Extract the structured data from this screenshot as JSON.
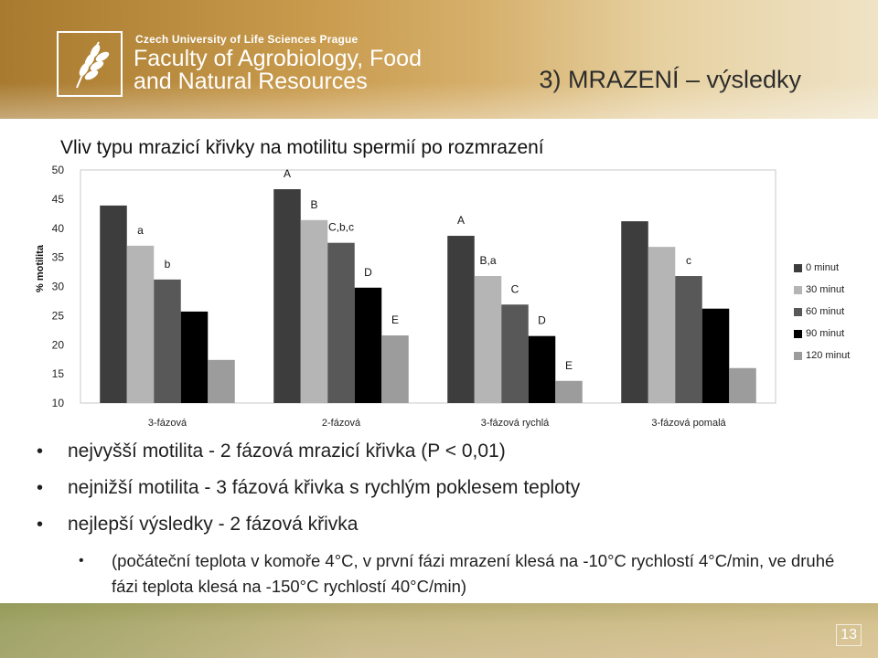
{
  "header": {
    "university": "Czech University of Life Sciences Prague",
    "faculty_line1": "Faculty of Agrobiology, Food",
    "faculty_line2": "and Natural Resources",
    "slide_title": "3) MRAZENÍ – výsledky"
  },
  "chart_data": {
    "type": "bar",
    "title": "Vliv typu mrazicí křivky na motilitu spermií po rozmrazení",
    "ylabel": "% motilita",
    "xlabel": "",
    "ylim": [
      10,
      50
    ],
    "yticks": [
      10,
      15,
      20,
      25,
      30,
      35,
      40,
      45,
      50
    ],
    "grid": false,
    "legend_position": "right",
    "categories": [
      "3-fázová",
      "2-fázová",
      "3-fázová rychlá",
      "3-fázová pomalá"
    ],
    "series": [
      {
        "name": "0 minut",
        "color": "#3d3d3d",
        "values": [
          43.9,
          46.7,
          38.7,
          41.2
        ],
        "labels": [
          "",
          "A",
          "A",
          ""
        ]
      },
      {
        "name": "30 minut",
        "color": "#b5b5b5",
        "values": [
          37.0,
          41.4,
          31.8,
          36.8
        ],
        "labels": [
          "a",
          "B",
          "B,a",
          ""
        ]
      },
      {
        "name": "60 minut",
        "color": "#585858",
        "values": [
          31.2,
          37.5,
          26.9,
          31.8
        ],
        "labels": [
          "b",
          "C,b,c",
          "C",
          "c"
        ]
      },
      {
        "name": "90 minut",
        "color": "#000000",
        "values": [
          25.7,
          29.8,
          21.5,
          26.2
        ],
        "labels": [
          "",
          "D",
          "D",
          ""
        ]
      },
      {
        "name": "120 minut",
        "color": "#9c9c9c",
        "values": [
          17.4,
          21.6,
          13.8,
          16.0
        ],
        "labels": [
          "",
          "E",
          "E",
          ""
        ]
      }
    ]
  },
  "bullets": [
    "nejvyšší motilita - 2 fázová mrazicí křivka (P < 0,01)",
    "nejnižší motilita - 3 fázová křivka s rychlým poklesem teploty",
    "nejlepší výsledky - 2 fázová křivka"
  ],
  "sub_bullet": "(počáteční teplota v komoře 4°C, v první fázi mrazení klesá na -10°C rychlostí 4°C/min, ve druhé fázi teplota klesá na -150°C rychlostí 40°C/min)",
  "footer": {
    "page_number": "13"
  }
}
